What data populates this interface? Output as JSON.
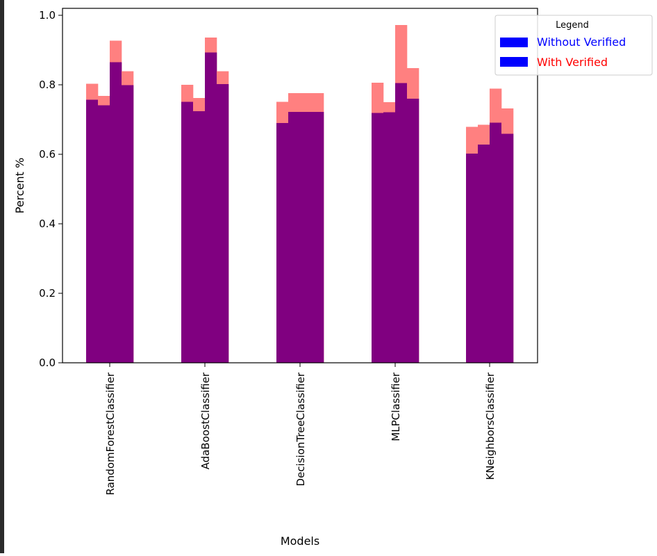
{
  "chart_data": {
    "type": "bar",
    "title": "",
    "xlabel": "Models",
    "ylabel": "Percent %",
    "ylim": [
      0,
      1.0
    ],
    "yticks": [
      "0.0",
      "0.2",
      "0.4",
      "0.6",
      "0.8",
      "1.0"
    ],
    "ytick_values": [
      0,
      0.2,
      0.4,
      0.6,
      0.8,
      1.0
    ],
    "grid": false,
    "categories": [
      "RandomForestClassifier",
      "AdaBoostClassifier",
      "DecisionTreeClassifier",
      "MLPClassifier",
      "KNeighborsClassifier"
    ],
    "legend": {
      "title": "Legend",
      "placement": "top-right",
      "entries": [
        {
          "label": "Without Verified",
          "text_color": "#0000ff",
          "swatch_color": "#0000ff"
        },
        {
          "label": "With Verified",
          "text_color": "#ff0000",
          "swatch_color": "#0000ff"
        }
      ]
    },
    "overlap_color": "#800080",
    "series": [
      {
        "name": "Without Verified",
        "color": "#800080",
        "values": [
          [
            0.757,
            0.741,
            0.865,
            0.799
          ],
          [
            0.751,
            0.724,
            0.893,
            0.802
          ],
          [
            0.69,
            0.722,
            0.722,
            0.722
          ],
          [
            0.719,
            0.721,
            0.805,
            0.76
          ],
          [
            0.602,
            0.628,
            0.691,
            0.659
          ]
        ]
      },
      {
        "name": "With Verified",
        "color": "#ff8080",
        "values": [
          [
            0.803,
            0.768,
            0.927,
            0.839
          ],
          [
            0.8,
            0.762,
            0.936,
            0.839
          ],
          [
            0.751,
            0.776,
            0.776,
            0.776
          ],
          [
            0.806,
            0.75,
            0.972,
            0.848
          ],
          [
            0.679,
            0.685,
            0.789,
            0.732
          ]
        ]
      }
    ]
  }
}
